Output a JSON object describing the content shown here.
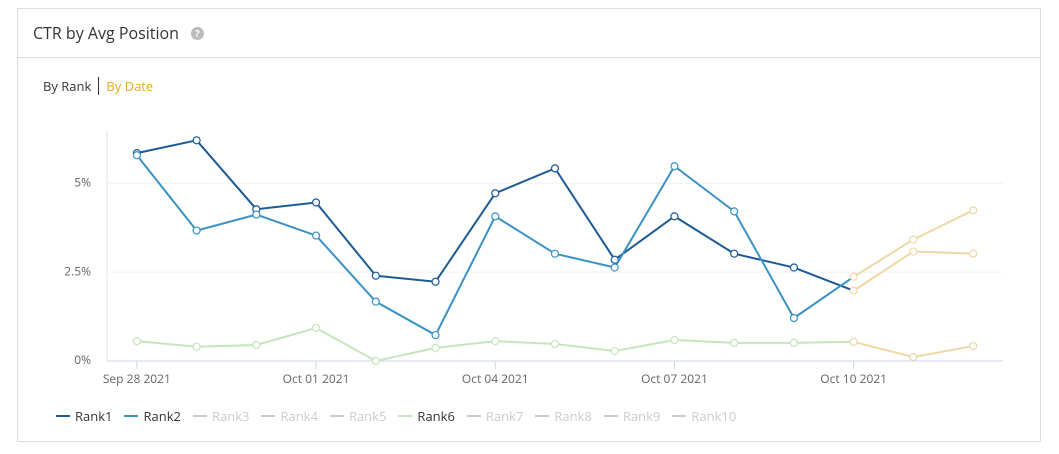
{
  "header": {
    "title": "CTR by Avg Position"
  },
  "tabs": [
    "By Rank",
    "By Date"
  ],
  "chart_data": {
    "type": "line",
    "categories": [
      "Sep 28 2021",
      null,
      null,
      "Oct 01 2021",
      null,
      null,
      "Oct 04 2021",
      null,
      null,
      "Oct 07 2021",
      null,
      null,
      "Oct 10 2021",
      null,
      null
    ],
    "ylim": [
      0,
      6.5
    ],
    "yticks": [
      {
        "value": 0,
        "label": "0%"
      },
      {
        "value": 2.5,
        "label": "2.5%"
      },
      {
        "value": 5,
        "label": "5%"
      }
    ],
    "grid": true,
    "legend": "bottom",
    "partial_from": "Oct 10 2021",
    "partial_color": "#efd8a6",
    "hidden_color": "#cccccc",
    "series": [
      {
        "name": "Rank1",
        "color": "#1a5a96",
        "visible": true,
        "values": [
          5.85,
          6.21,
          4.27,
          4.46,
          2.4,
          2.23,
          4.72,
          5.42,
          2.85,
          4.07,
          3.02,
          2.63,
          1.98,
          3.08,
          3.02
        ]
      },
      {
        "name": "Rank2",
        "color": "#3a92c4",
        "visible": true,
        "values": [
          5.79,
          3.67,
          4.12,
          3.53,
          1.67,
          0.73,
          4.07,
          3.02,
          2.63,
          5.48,
          4.21,
          1.21,
          2.37,
          3.42,
          4.24
        ]
      },
      {
        "name": "Rank3",
        "visible": false
      },
      {
        "name": "Rank4",
        "visible": false
      },
      {
        "name": "Rank5",
        "visible": false
      },
      {
        "name": "Rank6",
        "color": "#c6e5bd",
        "visible": true,
        "values": [
          0.56,
          0.4,
          0.45,
          0.93,
          0.0,
          0.37,
          0.56,
          0.48,
          0.28,
          0.59,
          0.51,
          0.51,
          0.54,
          0.11,
          0.42
        ]
      },
      {
        "name": "Rank7",
        "visible": false
      },
      {
        "name": "Rank8",
        "visible": false
      },
      {
        "name": "Rank9",
        "visible": false
      },
      {
        "name": "Rank10",
        "visible": false
      }
    ]
  }
}
